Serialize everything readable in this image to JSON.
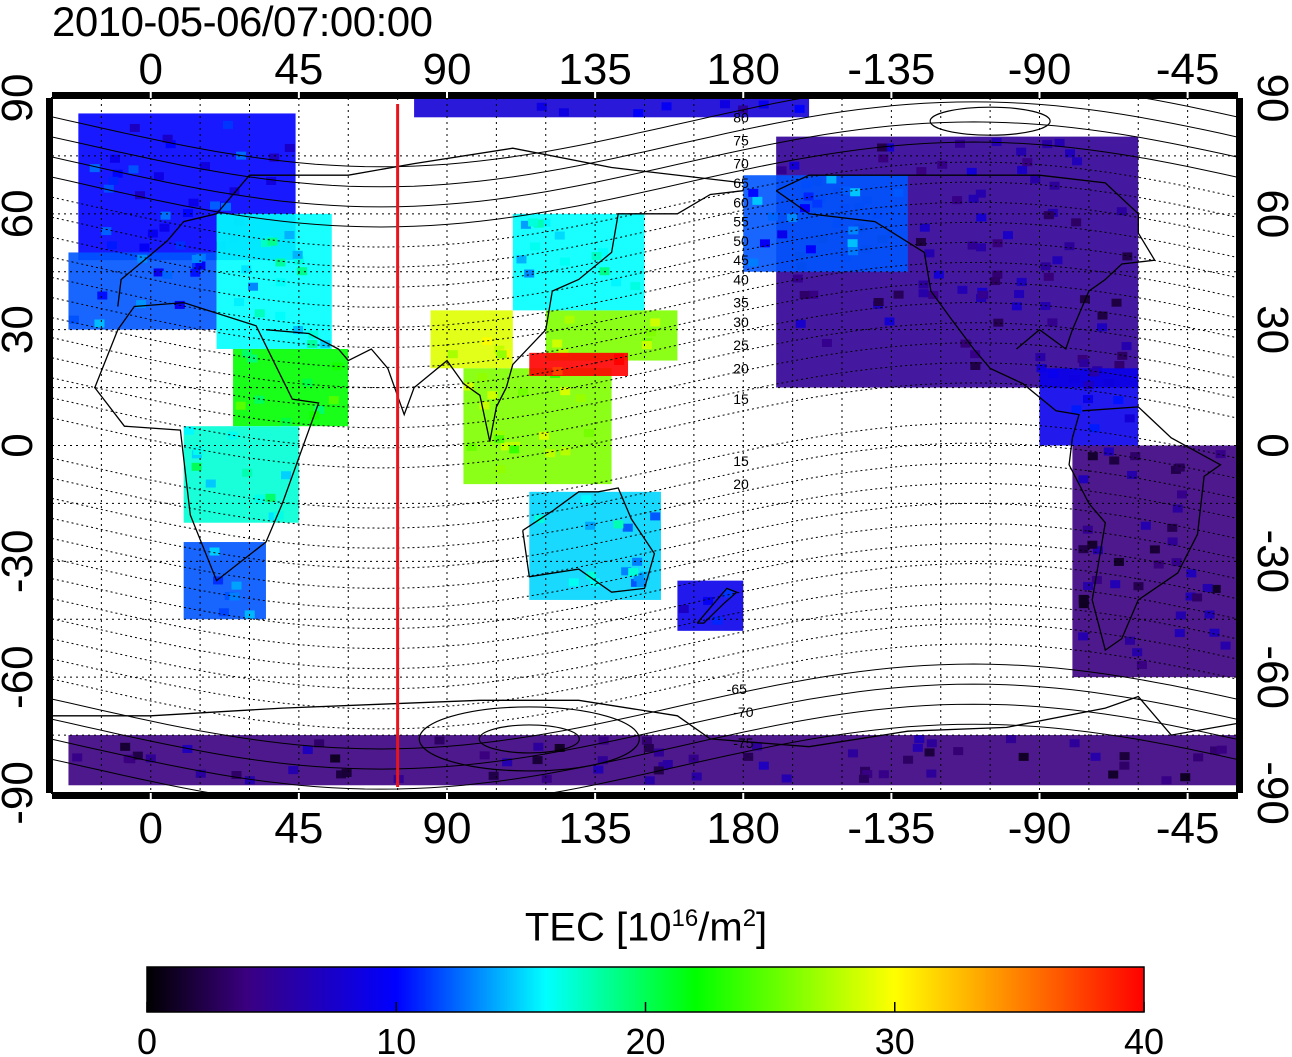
{
  "title": "2010-05-06/07:00:00",
  "map": {
    "lon_range": [
      -30,
      330
    ],
    "lat_range": [
      -90,
      90
    ],
    "marker_meridian_lon": 75,
    "marker_color": "#e8141c",
    "grid": true,
    "lon_ticks": [
      {
        "lon": 0,
        "label": "0"
      },
      {
        "lon": 45,
        "label": "45"
      },
      {
        "lon": 90,
        "label": "90"
      },
      {
        "lon": 135,
        "label": "135"
      },
      {
        "lon": 180,
        "label": "180"
      },
      {
        "lon": 225,
        "label": "-135"
      },
      {
        "lon": 270,
        "label": "-90"
      },
      {
        "lon": 315,
        "label": "-45"
      }
    ],
    "lat_ticks": [
      {
        "lat": 90,
        "label": "90"
      },
      {
        "lat": 60,
        "label": "60"
      },
      {
        "lat": 30,
        "label": "30"
      },
      {
        "lat": 0,
        "label": "0"
      },
      {
        "lat": -30,
        "label": "-30"
      },
      {
        "lat": -60,
        "label": "-60"
      },
      {
        "lat": -90,
        "label": "-90"
      }
    ],
    "contour_labels": [
      {
        "text": "80",
        "lon": 180,
        "lat": 85
      },
      {
        "text": "75",
        "lon": 180,
        "lat": 79
      },
      {
        "text": "70",
        "lon": 180,
        "lat": 73
      },
      {
        "text": "65",
        "lon": 180,
        "lat": 68
      },
      {
        "text": "60",
        "lon": 180,
        "lat": 63
      },
      {
        "text": "55",
        "lon": 180,
        "lat": 58
      },
      {
        "text": "50",
        "lon": 180,
        "lat": 53
      },
      {
        "text": "45",
        "lon": 180,
        "lat": 48
      },
      {
        "text": "40",
        "lon": 180,
        "lat": 43
      },
      {
        "text": "35",
        "lon": 180,
        "lat": 37
      },
      {
        "text": "30",
        "lon": 180,
        "lat": 32
      },
      {
        "text": "25",
        "lon": 180,
        "lat": 26
      },
      {
        "text": "20",
        "lon": 180,
        "lat": 20
      },
      {
        "text": "15",
        "lon": 180,
        "lat": 12
      },
      {
        "text": "15",
        "lon": 180,
        "lat": -4
      },
      {
        "text": "20",
        "lon": 180,
        "lat": -10
      },
      {
        "text": "-65",
        "lon": 178,
        "lat": -63
      },
      {
        "text": "-70",
        "lon": 180,
        "lat": -69
      },
      {
        "text": "-75",
        "lon": 180,
        "lat": -77
      }
    ],
    "tec_regions": [
      {
        "lon": [
          -22,
          44
        ],
        "lat": [
          48,
          86
        ],
        "tec": 10
      },
      {
        "lon": [
          -25,
          20
        ],
        "lat": [
          30,
          50
        ],
        "tec": 12
      },
      {
        "lon": [
          20,
          55
        ],
        "lat": [
          25,
          60
        ],
        "tec": 16
      },
      {
        "lon": [
          25,
          60
        ],
        "lat": [
          5,
          25
        ],
        "tec": 22
      },
      {
        "lon": [
          10,
          45
        ],
        "lat": [
          -20,
          5
        ],
        "tec": 17
      },
      {
        "lon": [
          10,
          35
        ],
        "lat": [
          -45,
          -25
        ],
        "tec": 12
      },
      {
        "lon": [
          85,
          110
        ],
        "lat": [
          20,
          35
        ],
        "tec": 29
      },
      {
        "lon": [
          95,
          140
        ],
        "lat": [
          -10,
          20
        ],
        "tec": 26
      },
      {
        "lon": [
          120,
          160
        ],
        "lat": [
          22,
          35
        ],
        "tec": 26
      },
      {
        "lon": [
          115,
          145
        ],
        "lat": [
          18,
          24
        ],
        "tec": 40
      },
      {
        "lon": [
          110,
          150
        ],
        "lat": [
          35,
          60
        ],
        "tec": 16
      },
      {
        "lon": [
          115,
          155
        ],
        "lat": [
          -40,
          -12
        ],
        "tec": 15
      },
      {
        "lon": [
          160,
          180
        ],
        "lat": [
          -48,
          -35
        ],
        "tec": 9
      },
      {
        "lon": [
          190,
          300
        ],
        "lat": [
          15,
          80
        ],
        "tec": 5
      },
      {
        "lon": [
          180,
          230
        ],
        "lat": [
          45,
          70
        ],
        "tec": 12
      },
      {
        "lon": [
          270,
          300
        ],
        "lat": [
          0,
          20
        ],
        "tec": 9
      },
      {
        "lon": [
          280,
          330
        ],
        "lat": [
          -60,
          0
        ],
        "tec": 4
      },
      {
        "lon": [
          -25,
          330
        ],
        "lat": [
          -88,
          -75
        ],
        "tec": 4
      },
      {
        "lon": [
          80,
          200
        ],
        "lat": [
          85,
          90
        ],
        "tec": 8
      }
    ]
  },
  "colorbar": {
    "title_main": "TEC  [10",
    "title_sup1": "16",
    "title_mid": "/m",
    "title_sup2": "2",
    "title_end": "]",
    "min": 0,
    "max": 40,
    "ticks": [
      {
        "value": 0,
        "label": "0"
      },
      {
        "value": 10,
        "label": "10"
      },
      {
        "value": 20,
        "label": "20"
      },
      {
        "value": 30,
        "label": "30"
      },
      {
        "value": 40,
        "label": "40"
      }
    ],
    "stops": [
      {
        "value": 0,
        "color": "#000000"
      },
      {
        "value": 4,
        "color": "#3a0080"
      },
      {
        "value": 10,
        "color": "#0000ff"
      },
      {
        "value": 16,
        "color": "#00ffff"
      },
      {
        "value": 22,
        "color": "#00ff00"
      },
      {
        "value": 30,
        "color": "#ffff00"
      },
      {
        "value": 35,
        "color": "#ff8000"
      },
      {
        "value": 40,
        "color": "#ff0000"
      }
    ]
  }
}
